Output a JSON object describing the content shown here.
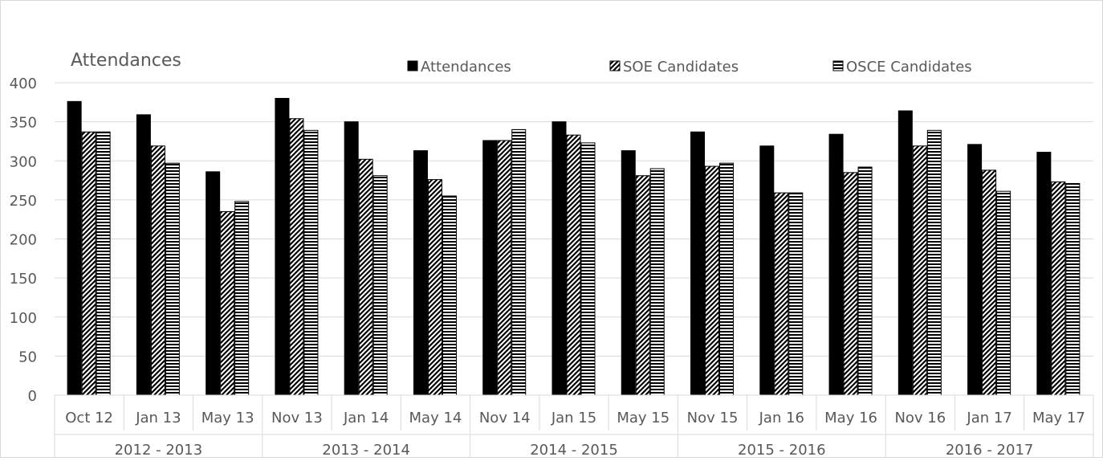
{
  "chart_data": {
    "type": "bar",
    "title": "Attendances",
    "ylim": [
      0,
      400
    ],
    "yticks": [
      0,
      50,
      100,
      150,
      200,
      250,
      300,
      350,
      400
    ],
    "grid": true,
    "legend_position": "top",
    "categories": [
      "Oct 12",
      "Jan 13",
      "May 13",
      "Nov 13",
      "Jan 14",
      "May 14",
      "Nov 14",
      "Jan 15",
      "May 15",
      "Nov 15",
      "Jan 16",
      "May 16",
      "Nov 16",
      "Jan 17",
      "May 17"
    ],
    "groups": [
      {
        "label": "2012 - 2013",
        "span": 3
      },
      {
        "label": "2013 - 2014",
        "span": 3
      },
      {
        "label": "2014 - 2015",
        "span": 3
      },
      {
        "label": "2015 - 2016",
        "span": 3
      },
      {
        "label": "2016 - 2017",
        "span": 3
      }
    ],
    "series": [
      {
        "name": "Attendances",
        "pattern": "solid",
        "values": [
          376,
          359,
          286,
          380,
          350,
          313,
          326,
          350,
          313,
          337,
          319,
          334,
          364,
          321,
          311
        ]
      },
      {
        "name": "SOE Candidates",
        "pattern": "diagonal",
        "values": [
          337,
          319,
          235,
          354,
          302,
          276,
          326,
          333,
          281,
          293,
          259,
          285,
          319,
          288,
          273
        ]
      },
      {
        "name": "OSCE Candidates",
        "pattern": "horizontal",
        "values": [
          337,
          297,
          248,
          339,
          281,
          255,
          340,
          323,
          290,
          297,
          259,
          292,
          339,
          261,
          271
        ]
      }
    ],
    "colors": {
      "bar_outline": "#000000",
      "fill": "#000000",
      "grid": "#d9d9d9",
      "text": "#595959"
    }
  }
}
